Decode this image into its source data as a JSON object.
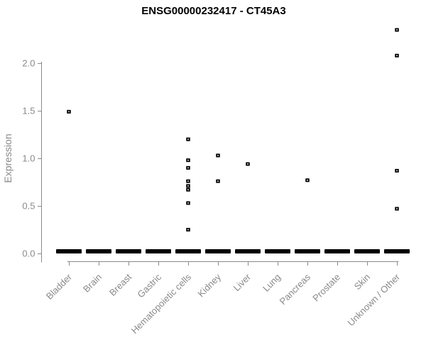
{
  "figure": {
    "background": "#ffffff"
  },
  "chart_data": {
    "type": "scatter",
    "variant": "strip-plot",
    "title": "ENSG00000232417 - CT45A3",
    "xlabel": "",
    "ylabel": "Expression",
    "categories": [
      "Bladder",
      "Brain",
      "Breast",
      "Gastric",
      "Hematopoietic cells",
      "Kidney",
      "Liver",
      "Lung",
      "Pancreas",
      "Prostate",
      "Skin",
      "Unknown / Other"
    ],
    "ytick_values": [
      0.0,
      0.5,
      1.0,
      1.5,
      2.0
    ],
    "ytick_labels": [
      "0.0",
      "0.5",
      "1.0",
      "1.5",
      "2.0"
    ],
    "ylim": [
      0,
      2.45
    ],
    "grid": false,
    "legend": false,
    "points": [
      {
        "category": "Bladder",
        "value": 1.49
      },
      {
        "category": "Hematopoietic cells",
        "value": 1.2
      },
      {
        "category": "Hematopoietic cells",
        "value": 0.98
      },
      {
        "category": "Hematopoietic cells",
        "value": 0.9
      },
      {
        "category": "Hematopoietic cells",
        "value": 0.76
      },
      {
        "category": "Hematopoietic cells",
        "value": 0.71
      },
      {
        "category": "Hematopoietic cells",
        "value": 0.67
      },
      {
        "category": "Hematopoietic cells",
        "value": 0.53
      },
      {
        "category": "Hematopoietic cells",
        "value": 0.25
      },
      {
        "category": "Kidney",
        "value": 1.03
      },
      {
        "category": "Kidney",
        "value": 0.76
      },
      {
        "category": "Liver",
        "value": 0.94
      },
      {
        "category": "Pancreas",
        "value": 0.77
      },
      {
        "category": "Unknown / Other",
        "value": 2.35
      },
      {
        "category": "Unknown / Other",
        "value": 2.08
      },
      {
        "category": "Unknown / Other",
        "value": 0.87
      },
      {
        "category": "Unknown / Other",
        "value": 0.47
      }
    ],
    "zero_bars": {
      "value": 0.0,
      "categories": [
        "Bladder",
        "Brain",
        "Breast",
        "Gastric",
        "Hematopoietic cells",
        "Kidney",
        "Liver",
        "Lung",
        "Pancreas",
        "Prostate",
        "Skin",
        "Unknown / Other"
      ]
    },
    "colors": {
      "point": "#000000",
      "axis": "#8a8a8a",
      "tick_label": "#8a8a8a",
      "title": "#000000"
    }
  }
}
